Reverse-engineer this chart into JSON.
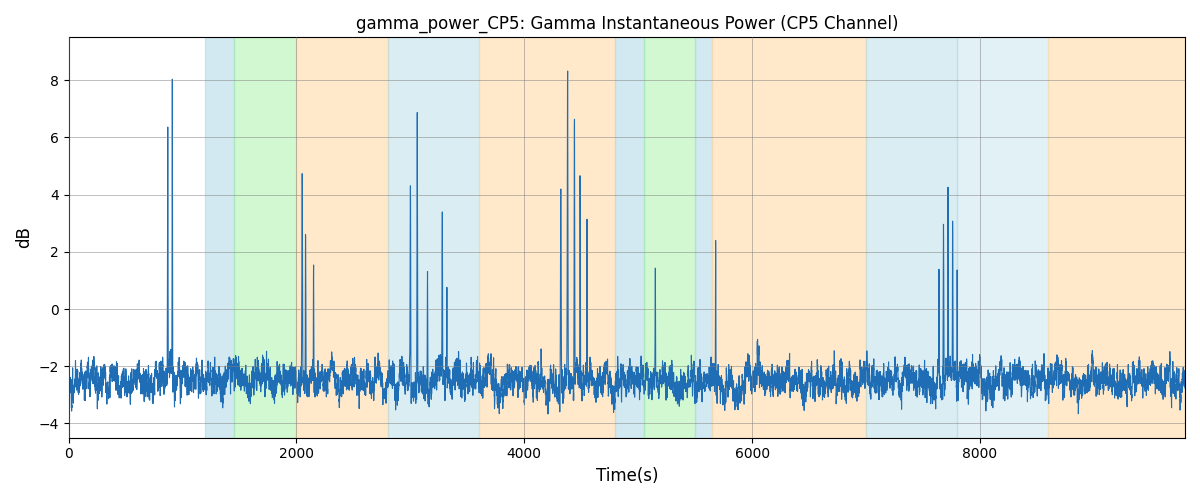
{
  "title": "gamma_power_CP5: Gamma Instantaneous Power (CP5 Channel)",
  "xlabel": "Time(s)",
  "ylabel": "dB",
  "ylim": [
    -4.5,
    9.5
  ],
  "xlim": [
    0,
    9800
  ],
  "xticks": [
    0,
    2000,
    4000,
    6000,
    8000
  ],
  "yticks": [
    -4,
    -2,
    0,
    2,
    4,
    6,
    8
  ],
  "line_color": "#1f6eb5",
  "line_width": 0.8,
  "bg_bands": [
    {
      "xmin": 1200,
      "xmax": 1450,
      "color": "#add8e6",
      "alpha": 0.55
    },
    {
      "xmin": 1450,
      "xmax": 2000,
      "color": "#90ee90",
      "alpha": 0.4
    },
    {
      "xmin": 2000,
      "xmax": 2800,
      "color": "#ffd8a0",
      "alpha": 0.55
    },
    {
      "xmin": 2800,
      "xmax": 3600,
      "color": "#add8e6",
      "alpha": 0.45
    },
    {
      "xmin": 3600,
      "xmax": 4800,
      "color": "#ffd8a0",
      "alpha": 0.55
    },
    {
      "xmin": 4800,
      "xmax": 5050,
      "color": "#add8e6",
      "alpha": 0.55
    },
    {
      "xmin": 5050,
      "xmax": 5500,
      "color": "#90ee90",
      "alpha": 0.4
    },
    {
      "xmin": 5500,
      "xmax": 5650,
      "color": "#add8e6",
      "alpha": 0.55
    },
    {
      "xmin": 5650,
      "xmax": 7000,
      "color": "#ffd8a0",
      "alpha": 0.55
    },
    {
      "xmin": 7000,
      "xmax": 7800,
      "color": "#add8e6",
      "alpha": 0.45
    },
    {
      "xmin": 7800,
      "xmax": 8600,
      "color": "#add8e6",
      "alpha": 0.35
    },
    {
      "xmin": 8600,
      "xmax": 9800,
      "color": "#ffd8a0",
      "alpha": 0.55
    }
  ],
  "figsize": [
    12,
    5
  ],
  "dpi": 100,
  "seed": 42
}
